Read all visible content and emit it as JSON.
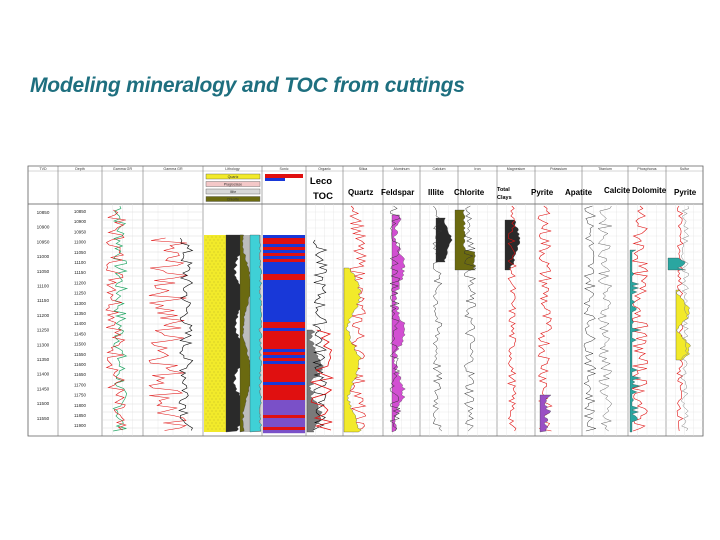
{
  "slide": {
    "title": "Modeling mineralogy and TOC from cuttings"
  },
  "track_headers": [
    "TVD",
    "Depth",
    "Gamma GR",
    "Gamma GR",
    "Lithology",
    "Sonic",
    "Organic",
    "Silica",
    "Aluminum",
    "Calcium",
    "Iron",
    "Magnesium",
    "Potassium",
    "Titanium",
    "Phosphorus",
    "Sulfur"
  ],
  "overlay_labels": {
    "leco_toc_line1": "Leco",
    "leco_toc_line2": "TOC",
    "quartz": "Quartz",
    "feldspar": "Feldspar",
    "illite": "Illite",
    "chlorite": "Chlorite",
    "total_clays_line1": "Total",
    "total_clays_line2": "Clays",
    "pyrite_1": "Pyrite",
    "apatite": "Apatite",
    "calcite": "Calcite",
    "dolomite": "Dolomite",
    "pyrite_2": "Pyrite"
  },
  "lithology_legend": [
    "Quartz",
    "Plagioclase",
    "Illite",
    "Chlorite"
  ],
  "tvd_values": [
    "10850",
    "10900",
    "10950",
    "11000",
    "11050",
    "11100",
    "11150",
    "11200",
    "11250",
    "11300",
    "11350",
    "11400",
    "11450",
    "11500",
    "11550"
  ],
  "depth_values": [
    "10850",
    "10900",
    "10950",
    "11000",
    "11050",
    "11100",
    "11150",
    "11200",
    "11250",
    "11300",
    "11350",
    "11400",
    "11450",
    "11500",
    "11550",
    "11600",
    "11650",
    "11700",
    "11750",
    "11800",
    "11850",
    "11900"
  ],
  "colors": {
    "title": "#1e6f7f",
    "quartz_fill": "#f2ea2a",
    "feldspar_fill": "#d24fd2",
    "clay_fill": "#2a2a2a",
    "chlorite_fill": "#6b6a10",
    "pyrite_fill": "#9a4fc4",
    "calcite_fill": "#2aa6a0",
    "resistivity_red": "#e01010",
    "resistivity_blue": "#1838d8"
  }
}
